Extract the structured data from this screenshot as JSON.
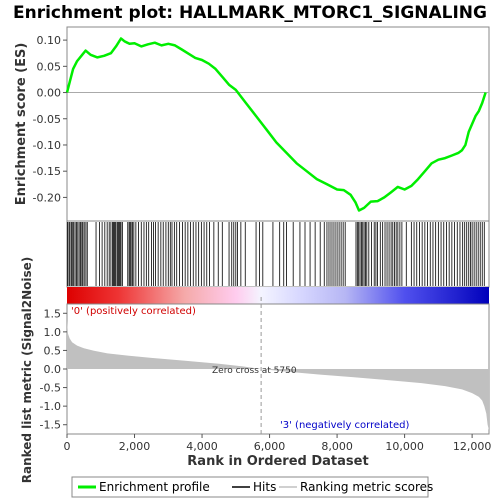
{
  "chart_data": {
    "type": "line",
    "title": "Enrichment plot: HALLMARK_MTORC1_SIGNALING",
    "n_genes": 12500,
    "es_panel": {
      "ylabel": "Enrichment score (ES)",
      "ylim": [
        -0.245,
        0.125
      ],
      "yticks": [
        0.1,
        0.05,
        0.0,
        -0.05,
        -0.1,
        -0.15,
        -0.2
      ],
      "ytick_labels": [
        "0.10",
        "0.05",
        "0.00",
        "-0.05",
        "-0.10",
        "-0.15",
        "-0.20"
      ],
      "series": [
        {
          "name": "Enrichment profile",
          "color": "#00ee00",
          "x": [
            0,
            80,
            180,
            300,
            450,
            550,
            700,
            900,
            1100,
            1300,
            1450,
            1600,
            1700,
            1850,
            2000,
            2200,
            2400,
            2600,
            2800,
            3000,
            3200,
            3400,
            3600,
            3800,
            4000,
            4200,
            4400,
            4600,
            4800,
            5000,
            5300,
            5600,
            5900,
            6200,
            6500,
            6800,
            7100,
            7400,
            7700,
            8000,
            8200,
            8400,
            8550,
            8650,
            8800,
            9000,
            9200,
            9400,
            9600,
            9800,
            10000,
            10200,
            10400,
            10600,
            10800,
            11000,
            11200,
            11400,
            11600,
            11700,
            11800,
            11900,
            12000,
            12100,
            12200,
            12300,
            12400
          ],
          "y": [
            0.0,
            0.02,
            0.045,
            0.06,
            0.072,
            0.08,
            0.072,
            0.067,
            0.07,
            0.075,
            0.088,
            0.103,
            0.098,
            0.093,
            0.094,
            0.088,
            0.092,
            0.095,
            0.09,
            0.093,
            0.09,
            0.082,
            0.074,
            0.066,
            0.062,
            0.055,
            0.045,
            0.03,
            0.015,
            0.005,
            -0.02,
            -0.045,
            -0.07,
            -0.095,
            -0.115,
            -0.135,
            -0.15,
            -0.165,
            -0.175,
            -0.185,
            -0.186,
            -0.195,
            -0.21,
            -0.225,
            -0.22,
            -0.208,
            -0.207,
            -0.2,
            -0.19,
            -0.18,
            -0.185,
            -0.178,
            -0.165,
            -0.15,
            -0.135,
            -0.128,
            -0.125,
            -0.12,
            -0.115,
            -0.11,
            -0.1,
            -0.075,
            -0.06,
            -0.045,
            -0.035,
            -0.02,
            0.0
          ]
        }
      ]
    },
    "hits": {
      "name": "Hits",
      "positions": [
        20,
        60,
        90,
        130,
        170,
        200,
        240,
        280,
        320,
        360,
        400,
        440,
        470,
        510,
        560,
        600,
        860,
        960,
        1040,
        1120,
        1190,
        1250,
        1300,
        1350,
        1380,
        1410,
        1440,
        1480,
        1510,
        1540,
        1570,
        1600,
        1640,
        1800,
        1840,
        1870,
        1900,
        1940,
        1980,
        2040,
        2120,
        2200,
        2280,
        2350,
        2420,
        2500,
        2560,
        2620,
        2700,
        2780,
        2850,
        2930,
        3000,
        3060,
        3110,
        3180,
        3250,
        3330,
        3420,
        3500,
        3580,
        3660,
        3740,
        3820,
        3900,
        3980,
        4060,
        4140,
        4220,
        4350,
        4480,
        4600,
        4800,
        4880,
        4940,
        5000,
        5050,
        5150,
        5280,
        5600,
        5700,
        5800,
        6100,
        6300,
        6420,
        6500,
        6700,
        6900,
        7050,
        7200,
        7350,
        7500,
        7620,
        7700,
        7760,
        7820,
        7880,
        7940,
        8000,
        8060,
        8120,
        8180,
        8240,
        8560,
        8600,
        8640,
        8680,
        8720,
        8760,
        8800,
        8840,
        8880,
        8940,
        9020,
        9100,
        9150,
        9200,
        9280,
        9350,
        9420,
        9480,
        9540,
        9600,
        9650,
        9700,
        9750,
        9800,
        9860,
        9920,
        10050,
        10200,
        10280,
        10360,
        10440,
        10520,
        10600,
        10680,
        10760,
        10840,
        10920,
        11000,
        11080,
        11160,
        11240,
        11320,
        11400,
        11480,
        11560,
        11640,
        11720,
        11780,
        11840,
        11900,
        11950,
        12000,
        12060,
        12120,
        12180,
        12240,
        12300,
        12360
      ]
    },
    "metric_panel": {
      "ylabel": "Ranked list metric (Signal2Noise)",
      "series_name": "Ranking metric scores",
      "ylim": [
        -1.75,
        1.75
      ],
      "yticks": [
        1.5,
        1.0,
        0.5,
        0.0,
        -0.5,
        -1.0,
        -1.5
      ],
      "ytick_labels": [
        "1.5",
        "1.0",
        "0.5",
        "0.0",
        "-0.5",
        "-1.0",
        "-1.5"
      ],
      "x": [
        0,
        30,
        80,
        150,
        300,
        500,
        800,
        1200,
        1800,
        2500,
        3500,
        4500,
        5200,
        5750,
        6500,
        7500,
        8500,
        9500,
        10500,
        11200,
        11700,
        12000,
        12200,
        12300,
        12360,
        12420,
        12460,
        12500
      ],
      "y": [
        1.3,
        0.95,
        0.82,
        0.72,
        0.63,
        0.56,
        0.49,
        0.42,
        0.36,
        0.3,
        0.22,
        0.14,
        0.07,
        0.0,
        -0.07,
        -0.15,
        -0.22,
        -0.3,
        -0.38,
        -0.46,
        -0.55,
        -0.65,
        -0.75,
        -0.85,
        -1.0,
        -1.2,
        -1.5,
        -1.65
      ],
      "zero_cross_label": "Zero cross at 5750",
      "zero_cross": 5750,
      "pos_label": "'0' (positively correlated)",
      "neg_label": "'3' (negatively correlated)"
    },
    "xaxis": {
      "xlabel": "Rank in Ordered Dataset",
      "xlim": [
        0,
        12500
      ],
      "xticks": [
        0,
        2000,
        4000,
        6000,
        8000,
        10000,
        12000
      ],
      "xtick_labels": [
        "0",
        "2,000",
        "4,000",
        "6,000",
        "8,000",
        "10,000",
        "12,000"
      ]
    },
    "legend": {
      "placement": "bottom",
      "items": [
        {
          "label": "Enrichment profile",
          "color": "#00ee00"
        },
        {
          "label": "Hits",
          "color": "#000000"
        },
        {
          "label": "Ranking metric scores",
          "color": "#c0c0c0"
        }
      ]
    }
  }
}
